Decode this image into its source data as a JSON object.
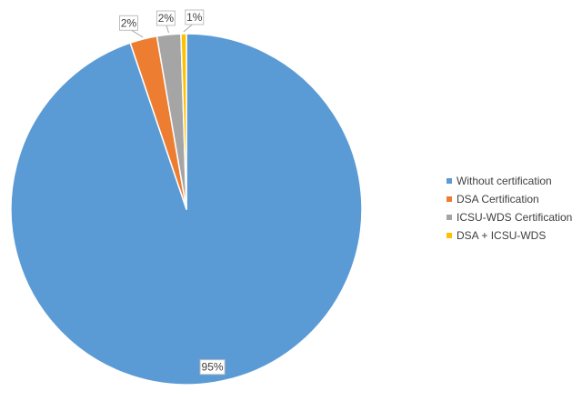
{
  "chart_data": {
    "type": "pie",
    "title": "",
    "legend_position": "right",
    "slices": [
      {
        "label": "Without certification",
        "value": 95,
        "display": "95%",
        "color": "#5b9bd5"
      },
      {
        "label": "DSA Certification",
        "value": 2.5,
        "display": "2%",
        "color": "#ed7d31"
      },
      {
        "label": "ICSU-WDS Certification",
        "value": 2.2,
        "display": "2%",
        "color": "#a5a5a5"
      },
      {
        "label": "DSA + ICSU-WDS",
        "value": 0.5,
        "display": "1%",
        "color": "#ffc000"
      }
    ]
  }
}
